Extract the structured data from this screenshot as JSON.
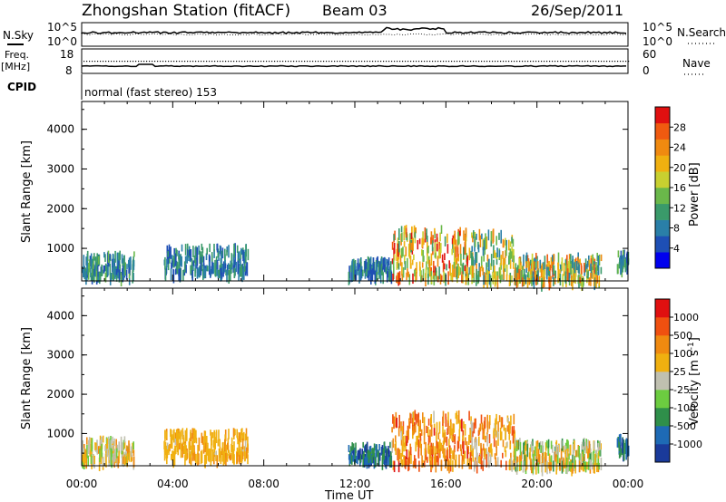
{
  "header": {
    "station": "Zhongshan Station (fitACF)",
    "beam": "Beam 03",
    "date": "26/Sep/2011"
  },
  "status_panels": {
    "nsky_label": "N.Sky",
    "nsky_ticks": [
      "10^5",
      "10^0"
    ],
    "nsearch_label": "N.Search",
    "nsearch_ticks": [
      "10^5",
      "10^0"
    ],
    "freq_label": "Freq.",
    "freq_unit": "[MHz]",
    "freq_ticks": [
      "18",
      "8"
    ],
    "nave_label": "Nave",
    "nave_ticks": [
      "60",
      "0"
    ],
    "cpid_label": "CPID",
    "cpid_text": "normal (fast stereo) 153"
  },
  "chart_data": [
    {
      "type": "heatmap",
      "name": "power",
      "ylabel": "Slant Range [km]",
      "xlabel": "Time UT",
      "x_ticks": [
        "00:00",
        "04:00",
        "08:00",
        "12:00",
        "16:00",
        "20:00",
        "00:00"
      ],
      "x_range_hours": [
        0,
        24
      ],
      "y_ticks": [
        1000,
        2000,
        3000,
        4000
      ],
      "ylim": [
        180,
        4700
      ],
      "colorbar": {
        "label": "Power [dB]",
        "ticks": [
          "28",
          "24",
          "20",
          "16",
          "12",
          "8",
          "4"
        ],
        "colors": [
          "#0000ee",
          "#1e4fb5",
          "#2a7fa8",
          "#3a9a6a",
          "#6ab84a",
          "#c8d030",
          "#f0b010",
          "#f08a10",
          "#f05a10",
          "#e01010"
        ]
      },
      "scatter_regions": [
        {
          "t0": 0.0,
          "t1": 2.3,
          "r0": 380,
          "r1": 950,
          "level": [
            0.1,
            0.45
          ]
        },
        {
          "t0": 3.6,
          "t1": 7.3,
          "r0": 450,
          "r1": 1150,
          "level": [
            0.1,
            0.4
          ]
        },
        {
          "t0": 11.7,
          "t1": 13.6,
          "r0": 400,
          "r1": 800,
          "level": [
            0.1,
            0.4
          ]
        },
        {
          "t0": 13.6,
          "t1": 17.0,
          "r0": 300,
          "r1": 1600,
          "level": [
            0.3,
            0.95
          ]
        },
        {
          "t0": 17.0,
          "t1": 19.0,
          "r0": 300,
          "r1": 1500,
          "level": [
            0.2,
            0.8
          ]
        },
        {
          "t0": 19.0,
          "t1": 22.8,
          "r0": 250,
          "r1": 900,
          "level": [
            0.2,
            0.9
          ]
        },
        {
          "t0": 23.5,
          "t1": 24.0,
          "r0": 600,
          "r1": 1000,
          "level": [
            0.1,
            0.5
          ]
        }
      ]
    },
    {
      "type": "heatmap",
      "name": "velocity",
      "ylabel": "Slant Range [km]",
      "xlabel": "Time UT",
      "x_ticks": [
        "00:00",
        "04:00",
        "08:00",
        "12:00",
        "16:00",
        "20:00",
        "00:00"
      ],
      "x_range_hours": [
        0,
        24
      ],
      "y_ticks": [
        1000,
        2000,
        3000,
        4000
      ],
      "ylim": [
        180,
        4700
      ],
      "colorbar": {
        "label": "Velocity [m s^-1]",
        "ticks": [
          "1000",
          "500",
          "100",
          "25",
          "-25",
          "-100",
          "-500",
          "-1000"
        ],
        "colors": [
          "#1a3a9a",
          "#1e6ab5",
          "#2f8f4a",
          "#6ccc40",
          "#c0c0b0",
          "#f0b010",
          "#f08a10",
          "#f05010",
          "#e01010"
        ]
      },
      "scatter_regions": [
        {
          "t0": 0.0,
          "t1": 2.3,
          "r0": 380,
          "r1": 950,
          "level": [
            0.4,
            0.7
          ]
        },
        {
          "t0": 3.6,
          "t1": 7.3,
          "r0": 450,
          "r1": 1150,
          "level": [
            0.55,
            0.7
          ]
        },
        {
          "t0": 11.7,
          "t1": 13.6,
          "r0": 400,
          "r1": 800,
          "level": [
            0.05,
            0.3
          ]
        },
        {
          "t0": 13.6,
          "t1": 17.0,
          "r0": 300,
          "r1": 1600,
          "level": [
            0.55,
            0.9
          ]
        },
        {
          "t0": 17.0,
          "t1": 19.0,
          "r0": 300,
          "r1": 1500,
          "level": [
            0.5,
            0.85
          ]
        },
        {
          "t0": 19.0,
          "t1": 22.8,
          "r0": 250,
          "r1": 900,
          "level": [
            0.3,
            0.75
          ]
        },
        {
          "t0": 23.5,
          "t1": 24.0,
          "r0": 600,
          "r1": 1000,
          "level": [
            0.05,
            0.3
          ]
        }
      ]
    }
  ]
}
